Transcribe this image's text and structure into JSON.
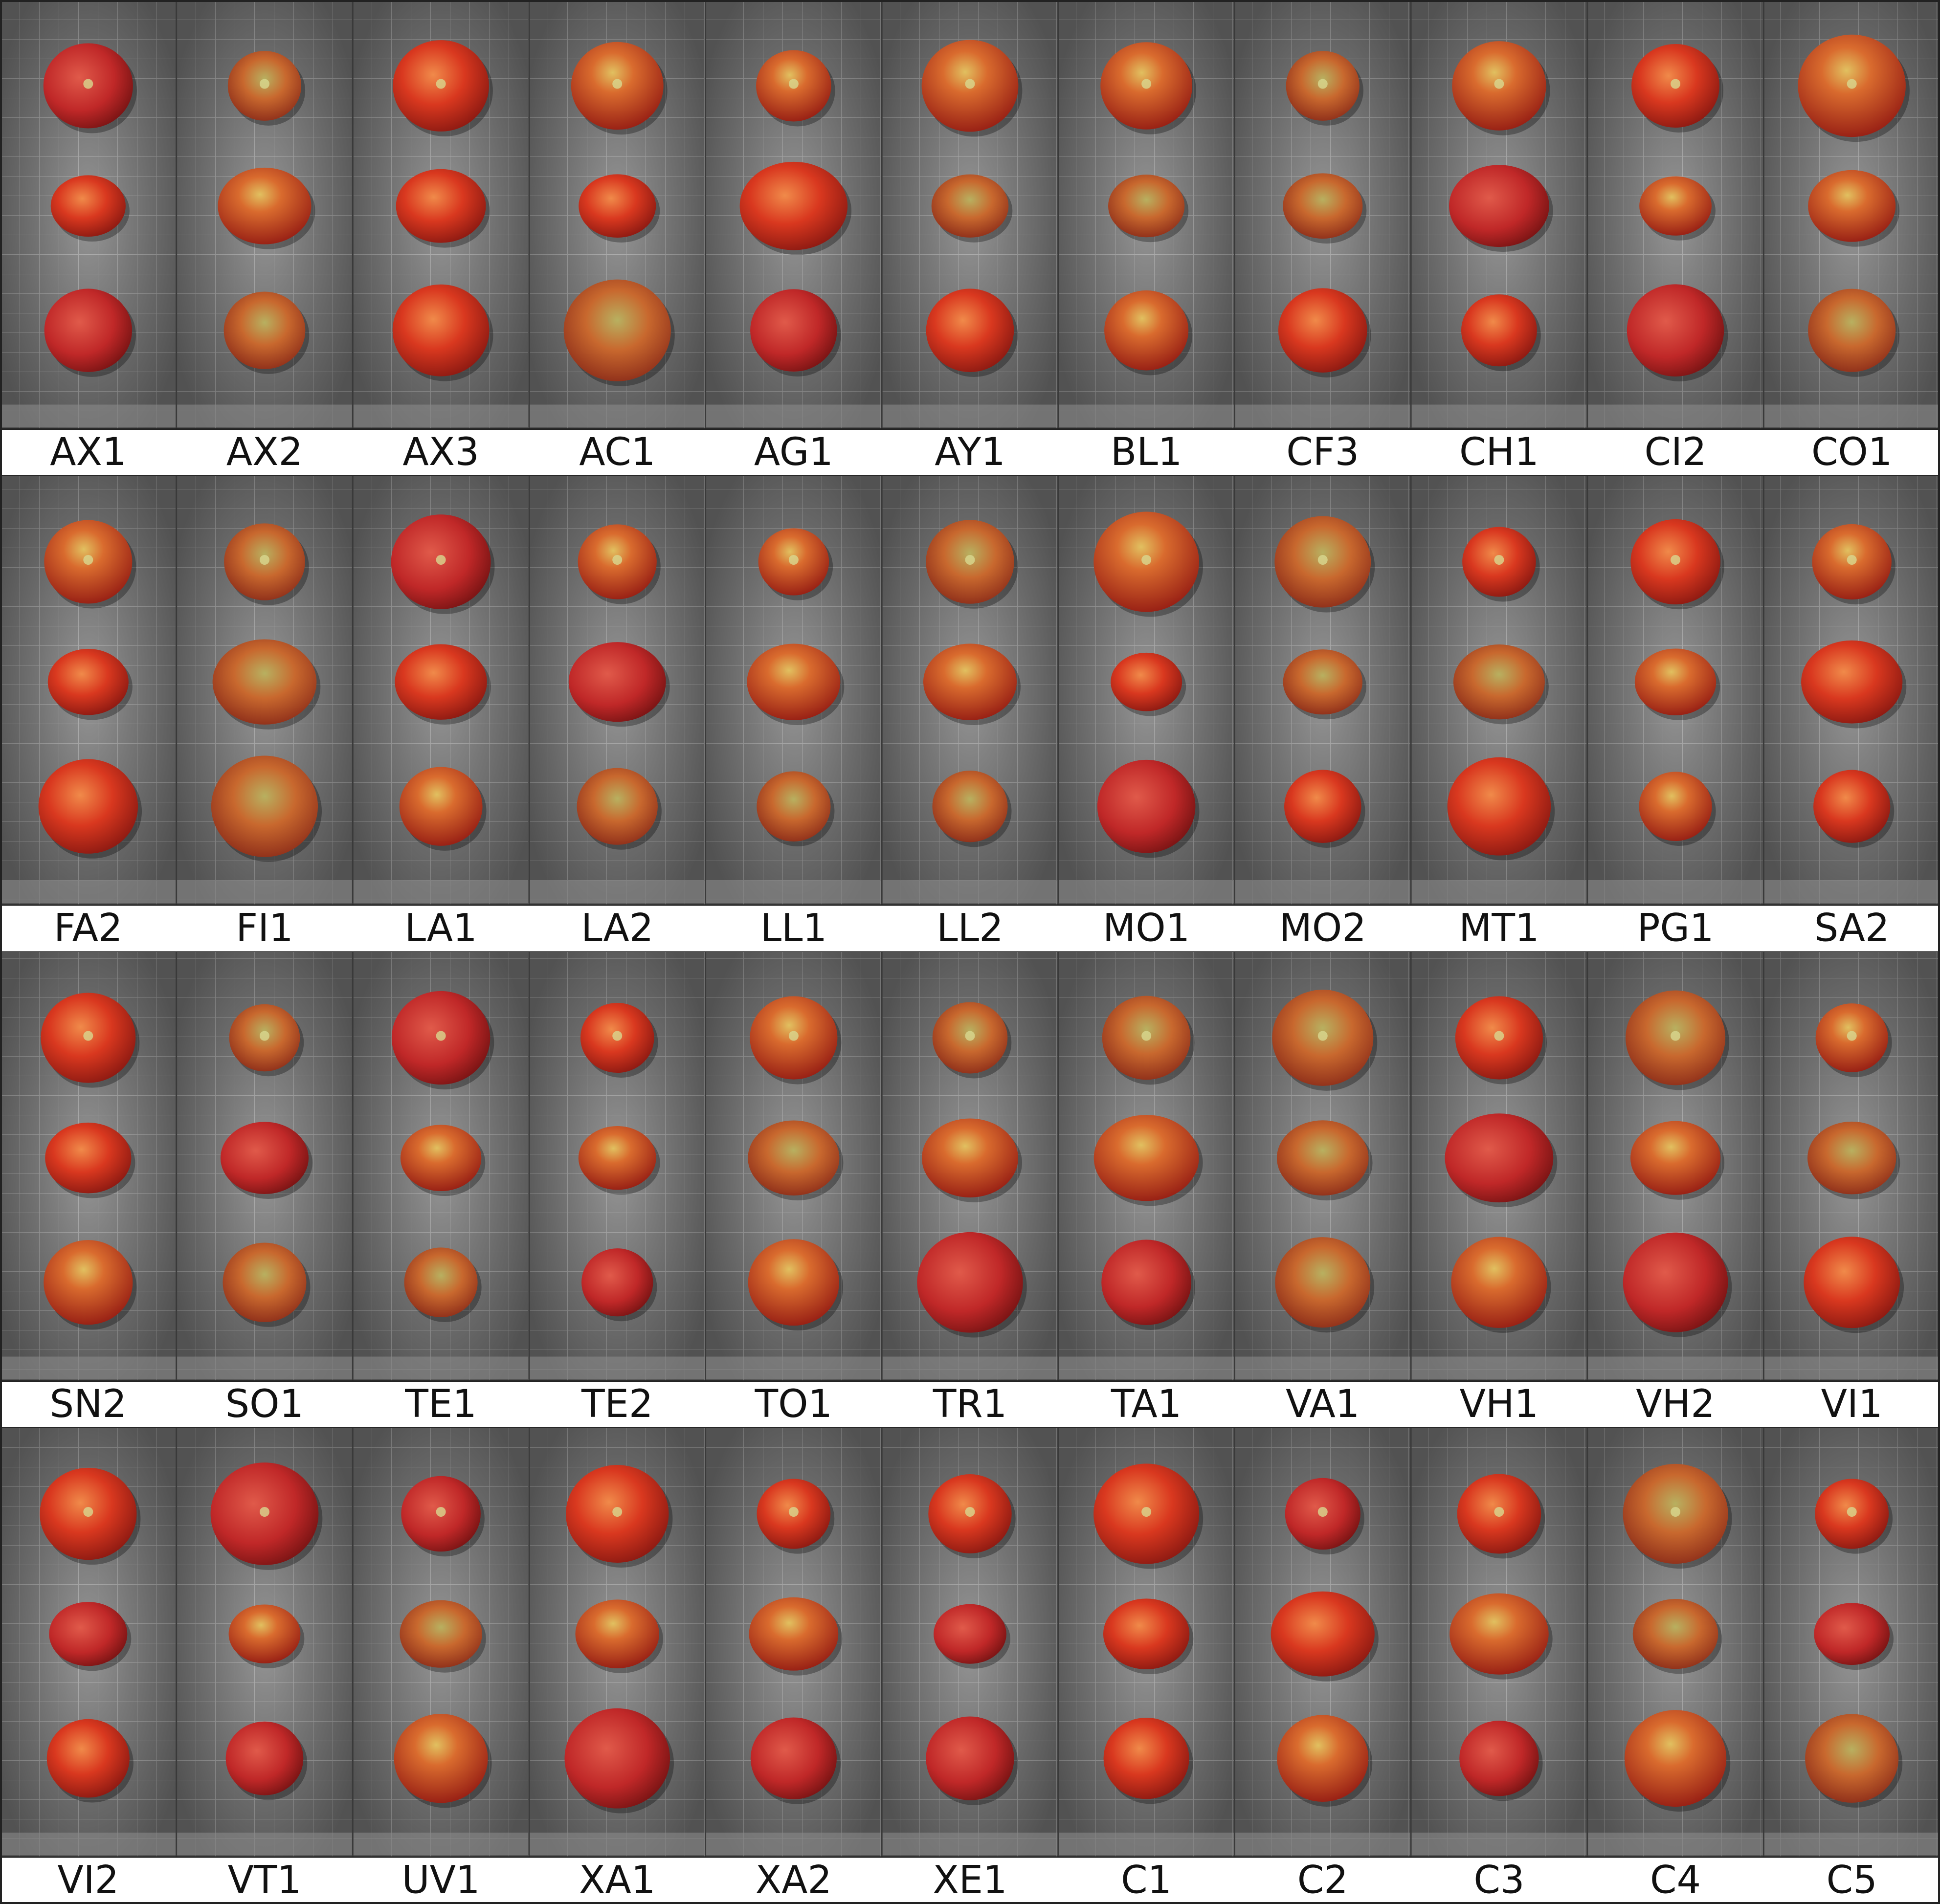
{
  "rows": [
    {
      "labels": [
        "AX1",
        "AX2",
        "AX3",
        "AC1",
        "AG1",
        "AY1",
        "BL1",
        "CF3",
        "CH1",
        "CI2",
        "CO1"
      ]
    },
    {
      "labels": [
        "FA2",
        "FI1",
        "LA1",
        "LA2",
        "LL1",
        "LL2",
        "MO1",
        "MO2",
        "MT1",
        "PG1",
        "SA2"
      ]
    },
    {
      "labels": [
        "SN2",
        "SO1",
        "TE1",
        "TE2",
        "TO1",
        "TR1",
        "TA1",
        "VA1",
        "VH1",
        "VH2",
        "VI1"
      ]
    },
    {
      "labels": [
        "VI2",
        "VT1",
        "UV1",
        "XA1",
        "XA2",
        "XE1",
        "C1",
        "C2",
        "C3",
        "C4",
        "C5"
      ]
    }
  ]
}
